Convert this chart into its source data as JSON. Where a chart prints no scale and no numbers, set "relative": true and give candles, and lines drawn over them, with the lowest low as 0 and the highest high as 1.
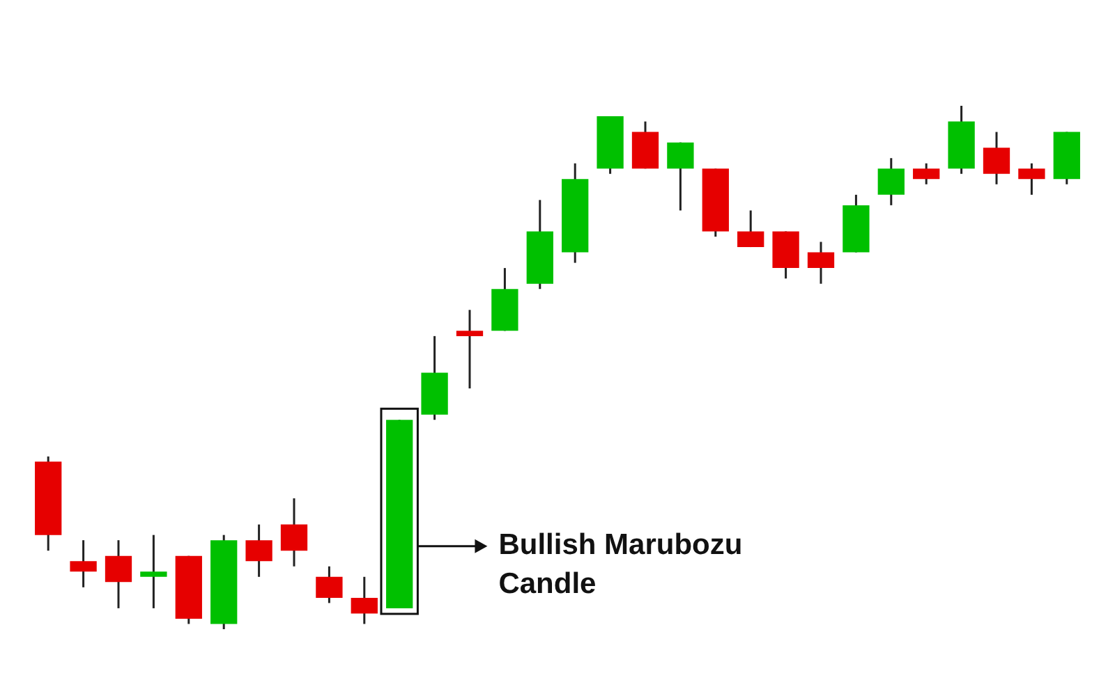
{
  "chart_data": {
    "type": "candlestick",
    "relative": true,
    "categories": [
      null,
      null,
      null,
      null,
      null,
      null,
      null,
      null,
      null,
      null,
      null,
      null,
      null,
      null,
      null,
      null,
      null,
      null,
      null,
      null,
      null,
      null,
      null,
      null,
      null,
      null,
      null,
      null,
      null,
      null
    ],
    "ohlc": [
      [
        0.32,
        0.33,
        0.15,
        0.18
      ],
      [
        0.13,
        0.17,
        0.08,
        0.11
      ],
      [
        0.14,
        0.17,
        0.04,
        0.09
      ],
      [
        0.1,
        0.18,
        0.04,
        0.11
      ],
      [
        0.14,
        0.14,
        0.01,
        0.02
      ],
      [
        0.01,
        0.18,
        0,
        0.17
      ],
      [
        0.17,
        0.2,
        0.1,
        0.13
      ],
      [
        0.2,
        0.25,
        0.12,
        0.15
      ],
      [
        0.1,
        0.12,
        0.05,
        0.06
      ],
      [
        0.06,
        0.1,
        0.01,
        0.03
      ],
      [
        0.04,
        0.4,
        0.04,
        0.4
      ],
      [
        0.41,
        0.56,
        0.4,
        0.49
      ],
      [
        0.57,
        0.61,
        0.46,
        0.56
      ],
      [
        0.57,
        0.69,
        0.57,
        0.65
      ],
      [
        0.66,
        0.82,
        0.65,
        0.76
      ],
      [
        0.72,
        0.89,
        0.7,
        0.86
      ],
      [
        0.88,
        0.98,
        0.87,
        0.98
      ],
      [
        0.95,
        0.97,
        0.88,
        0.88
      ],
      [
        0.88,
        0.93,
        0.8,
        0.93
      ],
      [
        0.88,
        0.88,
        0.75,
        0.76
      ],
      [
        0.76,
        0.8,
        0.73,
        0.73
      ],
      [
        0.76,
        0.76,
        0.67,
        0.69
      ],
      [
        0.72,
        0.74,
        0.66,
        0.69
      ],
      [
        0.72,
        0.83,
        0.72,
        0.81
      ],
      [
        0.83,
        0.9,
        0.81,
        0.88
      ],
      [
        0.88,
        0.89,
        0.85,
        0.86
      ],
      [
        0.88,
        1,
        0.87,
        0.97
      ],
      [
        0.92,
        0.95,
        0.85,
        0.87
      ],
      [
        0.88,
        0.89,
        0.83,
        0.86
      ],
      [
        0.86,
        0.95,
        0.85,
        0.95
      ]
    ],
    "colors": [
      "#e60000",
      "#e60000",
      "#e60000",
      "#00c000",
      "#e60000",
      "#00c000",
      "#e60000",
      "#e60000",
      "#e60000",
      "#e60000",
      "#00c000",
      "#00c000",
      "#e60000",
      "#00c000",
      "#00c000",
      "#00c000",
      "#00c000",
      "#e60000",
      "#00c000",
      "#e60000",
      "#e60000",
      "#e60000",
      "#e60000",
      "#00c000",
      "#00c000",
      "#e60000",
      "#00c000",
      "#e60000",
      "#e60000",
      "#00c000"
    ],
    "annotations": [
      "Bullish Marubozu Candle"
    ]
  }
}
